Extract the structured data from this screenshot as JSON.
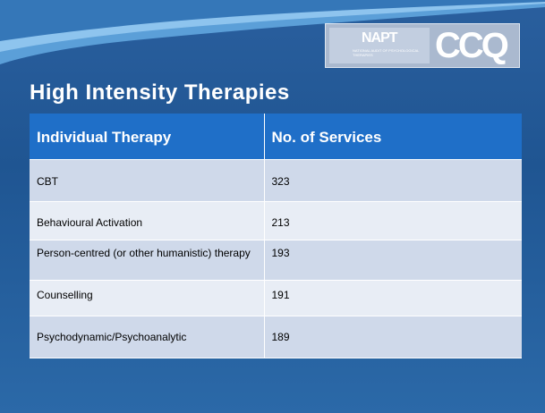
{
  "logo": {
    "napt": "NAPT",
    "subtitle": "NATIONAL AUDIT OF PSYCHOLOGICAL THERAPIES",
    "ccq": "CCQ"
  },
  "title": "High Intensity Therapies",
  "table": {
    "header": [
      "Individual Therapy",
      "No. of Services"
    ],
    "rows": [
      [
        "CBT",
        "323"
      ],
      [
        "Behavioural Activation",
        "213"
      ],
      [
        "Person-centred (or other humanistic) therapy",
        "193"
      ],
      [
        "Counselling",
        "191"
      ],
      [
        "Psychodynamic/Psychoanalytic",
        "189"
      ]
    ]
  }
}
